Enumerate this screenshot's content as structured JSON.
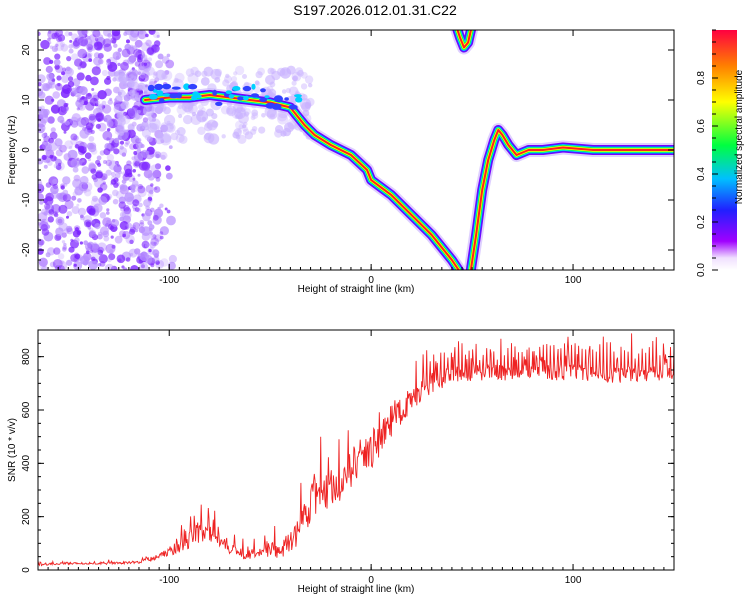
{
  "title": "S197.2026.012.01.31.C22",
  "colors": {
    "snr_line": "#ee2222",
    "frame": "#000000",
    "ridge_gradient": [
      "#ff2020",
      "#ffff00",
      "#00ff40",
      "#00e0ff",
      "#3030ff",
      "#7a00ff",
      "#c8b0ff"
    ]
  },
  "chart_data": [
    {
      "type": "heatmap",
      "xlabel": "Height of straight line (km)",
      "ylabel": "Frequency (Hz)",
      "xlim": [
        -165,
        150
      ],
      "ylim": [
        -24,
        24
      ],
      "x_ticks": [
        -100,
        0,
        100
      ],
      "x_tick_labels": [
        "-100",
        "0",
        "100"
      ],
      "y_ticks": [
        20,
        10,
        0,
        -10,
        -20
      ],
      "y_tick_labels": [
        "20",
        "10",
        "0",
        "-10",
        "-20"
      ],
      "colorbar": {
        "label": "Normalized spectral amplitude",
        "range": [
          0,
          1
        ],
        "ticks": [
          0.0,
          0.2,
          0.4,
          0.6,
          0.8
        ],
        "tick_labels": [
          "0.0",
          "0.2",
          "0.4",
          "0.6",
          "0.8"
        ]
      },
      "ridge": {
        "x": [
          -112,
          -100,
          -90,
          -80,
          -70,
          -60,
          -50,
          -40,
          -33,
          -28,
          -20,
          -10,
          -2,
          0,
          10,
          20,
          30,
          40,
          45,
          49,
          52,
          55,
          58,
          61,
          63,
          65,
          68,
          72,
          78,
          85,
          95,
          110,
          150
        ],
        "y": [
          10,
          10.5,
          10.5,
          11,
          10.5,
          10,
          9.5,
          8.5,
          5,
          3,
          1,
          -1,
          -4,
          -6,
          -9,
          -13,
          -17,
          -22,
          -25,
          -25,
          -17,
          -8,
          -2,
          2,
          4,
          3,
          1,
          -1,
          0,
          0,
          0.5,
          0,
          0
        ]
      },
      "upper_branch": {
        "x": [
          42,
          44,
          46,
          48,
          50
        ],
        "y": [
          25,
          22.5,
          20.5,
          21.5,
          25
        ]
      }
    },
    {
      "type": "line",
      "xlabel": "Height of straight line (km)",
      "ylabel": "SNR (10 * v/v)",
      "xlim": [
        -165,
        150
      ],
      "ylim": [
        0,
        900
      ],
      "x_ticks": [
        -100,
        0,
        100
      ],
      "x_tick_labels": [
        "-100",
        "0",
        "100"
      ],
      "y_ticks": [
        0,
        200,
        400,
        600,
        800
      ],
      "y_tick_labels": [
        "0",
        "200",
        "400",
        "600",
        "800"
      ],
      "series": [
        {
          "x": [
            -165,
            -150,
            -130,
            -115,
            -105,
            -95,
            -85,
            -75,
            -65,
            -55,
            -45,
            -35,
            -30,
            -25,
            -20,
            -15,
            -10,
            -5,
            0,
            5,
            10,
            15,
            20,
            25,
            30,
            40,
            50,
            60,
            80,
            100,
            120,
            150
          ],
          "y": [
            20,
            25,
            25,
            30,
            50,
            90,
            140,
            110,
            60,
            60,
            70,
            150,
            250,
            280,
            300,
            330,
            380,
            420,
            450,
            500,
            560,
            600,
            640,
            680,
            700,
            730,
            740,
            740,
            740,
            740,
            730,
            740
          ],
          "spread": [
            8,
            8,
            8,
            10,
            20,
            50,
            80,
            60,
            40,
            40,
            60,
            100,
            150,
            150,
            150,
            150,
            150,
            150,
            140,
            130,
            120,
            110,
            100,
            90,
            80,
            60,
            60,
            60,
            60,
            60,
            60,
            50
          ]
        }
      ]
    }
  ]
}
